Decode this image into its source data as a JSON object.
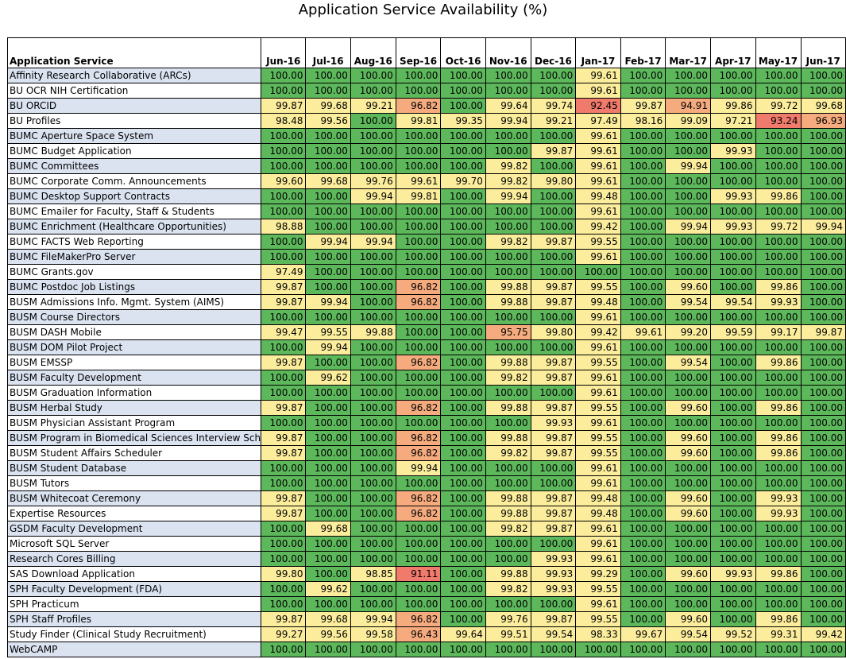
{
  "title": "Application Service Availability (%)",
  "colors": {
    "green": "#5db85c",
    "yellow": "#fbed9c",
    "orange": "#f5ab7e",
    "red": "#f07a6c",
    "name_blue": "#dbe3f1",
    "name_white": "#ffffff"
  },
  "chart_data": {
    "type": "table",
    "title": "Application Service Availability (%)",
    "row_header": "Application Service",
    "columns": [
      "Jun-16",
      "Jul-16",
      "Aug-16",
      "Sep-16",
      "Oct-16",
      "Nov-16",
      "Dec-16",
      "Jan-17",
      "Feb-17",
      "Mar-17",
      "Apr-17",
      "May-17",
      "Jun-17"
    ],
    "rows": [
      {
        "name": "Affinity Research Collaborative (ARCs)",
        "values": [
          "100.00",
          "100.00",
          "100.00",
          "100.00",
          "100.00",
          "100.00",
          "100.00",
          "99.61",
          "100.00",
          "100.00",
          "100.00",
          "100.00",
          "100.00"
        ]
      },
      {
        "name": "BU OCR NIH Certification",
        "values": [
          "100.00",
          "100.00",
          "100.00",
          "100.00",
          "100.00",
          "100.00",
          "100.00",
          "99.61",
          "100.00",
          "100.00",
          "100.00",
          "100.00",
          "100.00"
        ]
      },
      {
        "name": "BU ORCID",
        "values": [
          "99.87",
          "99.68",
          "99.21",
          "96.82",
          "100.00",
          "99.64",
          "99.74",
          "92.45",
          "99.87",
          "94.91",
          "99.86",
          "99.72",
          "99.68"
        ]
      },
      {
        "name": "BU Profiles",
        "values": [
          "98.48",
          "99.56",
          "100.00",
          "99.81",
          "99.35",
          "99.94",
          "99.21",
          "97.49",
          "98.16",
          "99.09",
          "97.21",
          "93.24",
          "96.93"
        ]
      },
      {
        "name": "BUMC Aperture Space System",
        "values": [
          "100.00",
          "100.00",
          "100.00",
          "100.00",
          "100.00",
          "100.00",
          "100.00",
          "99.61",
          "100.00",
          "100.00",
          "100.00",
          "100.00",
          "100.00"
        ]
      },
      {
        "name": "BUMC Budget Application",
        "values": [
          "100.00",
          "100.00",
          "100.00",
          "100.00",
          "100.00",
          "100.00",
          "99.87",
          "99.61",
          "100.00",
          "100.00",
          "99.93",
          "100.00",
          "100.00"
        ]
      },
      {
        "name": "BUMC Committees",
        "values": [
          "100.00",
          "100.00",
          "100.00",
          "100.00",
          "100.00",
          "99.82",
          "100.00",
          "99.61",
          "100.00",
          "99.94",
          "100.00",
          "100.00",
          "100.00"
        ]
      },
      {
        "name": "BUMC Corporate Comm. Announcements",
        "values": [
          "99.60",
          "99.68",
          "99.76",
          "99.61",
          "99.70",
          "99.82",
          "99.80",
          "99.61",
          "100.00",
          "100.00",
          "100.00",
          "100.00",
          "100.00"
        ]
      },
      {
        "name": "BUMC Desktop Support Contracts",
        "values": [
          "100.00",
          "100.00",
          "99.94",
          "99.81",
          "100.00",
          "99.94",
          "100.00",
          "99.48",
          "100.00",
          "100.00",
          "99.93",
          "99.86",
          "100.00"
        ]
      },
      {
        "name": "BUMC Emailer for Faculty, Staff & Students",
        "values": [
          "100.00",
          "100.00",
          "100.00",
          "100.00",
          "100.00",
          "100.00",
          "100.00",
          "99.61",
          "100.00",
          "100.00",
          "100.00",
          "100.00",
          "100.00"
        ]
      },
      {
        "name": "BUMC Enrichment (Healthcare Opportunities)",
        "values": [
          "98.88",
          "100.00",
          "100.00",
          "100.00",
          "100.00",
          "100.00",
          "100.00",
          "99.42",
          "100.00",
          "99.94",
          "99.93",
          "99.72",
          "99.94"
        ]
      },
      {
        "name": "BUMC FACTS Web Reporting",
        "values": [
          "100.00",
          "99.94",
          "99.94",
          "100.00",
          "100.00",
          "99.82",
          "99.87",
          "99.55",
          "100.00",
          "100.00",
          "100.00",
          "100.00",
          "100.00"
        ]
      },
      {
        "name": "BUMC FileMakerPro Server",
        "values": [
          "100.00",
          "100.00",
          "100.00",
          "100.00",
          "100.00",
          "100.00",
          "100.00",
          "99.61",
          "100.00",
          "100.00",
          "100.00",
          "100.00",
          "100.00"
        ]
      },
      {
        "name": "BUMC Grants.gov",
        "values": [
          "97.49",
          "100.00",
          "100.00",
          "100.00",
          "100.00",
          "100.00",
          "100.00",
          "100.00",
          "100.00",
          "100.00",
          "100.00",
          "100.00",
          "100.00"
        ]
      },
      {
        "name": "BUMC Postdoc Job Listings",
        "values": [
          "99.87",
          "100.00",
          "100.00",
          "96.82",
          "100.00",
          "99.88",
          "99.87",
          "99.55",
          "100.00",
          "99.60",
          "100.00",
          "99.86",
          "100.00"
        ]
      },
      {
        "name": "BUSM Admissions Info. Mgmt. System (AIMS)",
        "values": [
          "99.87",
          "99.94",
          "100.00",
          "96.82",
          "100.00",
          "99.88",
          "99.87",
          "99.48",
          "100.00",
          "99.54",
          "99.54",
          "99.93",
          "100.00"
        ]
      },
      {
        "name": "BUSM Course Directors",
        "values": [
          "100.00",
          "100.00",
          "100.00",
          "100.00",
          "100.00",
          "100.00",
          "100.00",
          "99.61",
          "100.00",
          "100.00",
          "100.00",
          "100.00",
          "100.00"
        ]
      },
      {
        "name": "BUSM DASH Mobile",
        "values": [
          "99.47",
          "99.55",
          "99.88",
          "100.00",
          "100.00",
          "95.75",
          "99.80",
          "99.42",
          "99.61",
          "99.20",
          "99.59",
          "99.17",
          "99.87"
        ]
      },
      {
        "name": "BUSM DOM Pilot Project",
        "values": [
          "100.00",
          "99.94",
          "100.00",
          "100.00",
          "100.00",
          "100.00",
          "100.00",
          "99.61",
          "100.00",
          "100.00",
          "100.00",
          "100.00",
          "100.00"
        ]
      },
      {
        "name": "BUSM EMSSP",
        "values": [
          "99.87",
          "100.00",
          "100.00",
          "96.82",
          "100.00",
          "99.88",
          "99.87",
          "99.55",
          "100.00",
          "99.54",
          "100.00",
          "99.86",
          "100.00"
        ]
      },
      {
        "name": "BUSM Faculty Development",
        "values": [
          "100.00",
          "99.62",
          "100.00",
          "100.00",
          "100.00",
          "99.82",
          "99.87",
          "99.61",
          "100.00",
          "100.00",
          "100.00",
          "100.00",
          "100.00"
        ]
      },
      {
        "name": "BUSM Graduation Information",
        "values": [
          "100.00",
          "100.00",
          "100.00",
          "100.00",
          "100.00",
          "100.00",
          "100.00",
          "99.61",
          "100.00",
          "100.00",
          "100.00",
          "100.00",
          "100.00"
        ]
      },
      {
        "name": "BUSM Herbal Study",
        "values": [
          "99.87",
          "100.00",
          "100.00",
          "96.82",
          "100.00",
          "99.88",
          "99.87",
          "99.55",
          "100.00",
          "99.60",
          "100.00",
          "99.86",
          "100.00"
        ]
      },
      {
        "name": "BUSM Physician Assistant Program",
        "values": [
          "100.00",
          "100.00",
          "100.00",
          "100.00",
          "100.00",
          "100.00",
          "99.93",
          "99.61",
          "100.00",
          "100.00",
          "100.00",
          "100.00",
          "100.00"
        ]
      },
      {
        "name": "BUSM Program in Biomedical Sciences Interview Sch",
        "values": [
          "99.87",
          "100.00",
          "100.00",
          "96.82",
          "100.00",
          "99.88",
          "99.87",
          "99.55",
          "100.00",
          "99.60",
          "100.00",
          "99.86",
          "100.00"
        ]
      },
      {
        "name": "BUSM Student Affairs Scheduler",
        "values": [
          "99.87",
          "100.00",
          "100.00",
          "96.82",
          "100.00",
          "99.82",
          "99.87",
          "99.55",
          "100.00",
          "99.60",
          "100.00",
          "99.86",
          "100.00"
        ]
      },
      {
        "name": "BUSM Student Database",
        "values": [
          "100.00",
          "100.00",
          "100.00",
          "99.94",
          "100.00",
          "100.00",
          "100.00",
          "99.61",
          "100.00",
          "100.00",
          "100.00",
          "100.00",
          "100.00"
        ]
      },
      {
        "name": "BUSM Tutors",
        "values": [
          "100.00",
          "100.00",
          "100.00",
          "100.00",
          "100.00",
          "100.00",
          "100.00",
          "99.61",
          "100.00",
          "100.00",
          "100.00",
          "100.00",
          "100.00"
        ]
      },
      {
        "name": "BUSM Whitecoat Ceremony",
        "values": [
          "99.87",
          "100.00",
          "100.00",
          "96.82",
          "100.00",
          "99.88",
          "99.87",
          "99.48",
          "100.00",
          "99.60",
          "100.00",
          "99.93",
          "100.00"
        ]
      },
      {
        "name": "Expertise Resources",
        "values": [
          "99.87",
          "100.00",
          "100.00",
          "96.82",
          "100.00",
          "99.88",
          "99.87",
          "99.48",
          "100.00",
          "99.60",
          "100.00",
          "99.93",
          "100.00"
        ]
      },
      {
        "name": "GSDM Faculty Development",
        "values": [
          "100.00",
          "99.68",
          "100.00",
          "100.00",
          "100.00",
          "99.82",
          "99.87",
          "99.61",
          "100.00",
          "100.00",
          "100.00",
          "100.00",
          "100.00"
        ]
      },
      {
        "name": "Microsoft SQL Server",
        "values": [
          "100.00",
          "100.00",
          "100.00",
          "100.00",
          "100.00",
          "100.00",
          "100.00",
          "99.61",
          "100.00",
          "100.00",
          "100.00",
          "100.00",
          "100.00"
        ]
      },
      {
        "name": "Research Cores Billing",
        "values": [
          "100.00",
          "100.00",
          "100.00",
          "100.00",
          "100.00",
          "100.00",
          "99.93",
          "99.61",
          "100.00",
          "100.00",
          "100.00",
          "100.00",
          "100.00"
        ]
      },
      {
        "name": "SAS Download Application",
        "values": [
          "99.80",
          "100.00",
          "98.85",
          "91.11",
          "100.00",
          "99.88",
          "99.93",
          "99.29",
          "100.00",
          "99.60",
          "99.93",
          "99.86",
          "100.00"
        ]
      },
      {
        "name": "SPH Faculty Development (FDA)",
        "values": [
          "100.00",
          "99.62",
          "100.00",
          "100.00",
          "100.00",
          "99.82",
          "99.93",
          "99.55",
          "100.00",
          "100.00",
          "100.00",
          "100.00",
          "100.00"
        ]
      },
      {
        "name": "SPH Practicum",
        "values": [
          "100.00",
          "100.00",
          "100.00",
          "100.00",
          "100.00",
          "100.00",
          "100.00",
          "99.61",
          "100.00",
          "100.00",
          "100.00",
          "100.00",
          "100.00"
        ]
      },
      {
        "name": "SPH Staff Profiles",
        "values": [
          "99.87",
          "99.68",
          "99.94",
          "96.82",
          "100.00",
          "99.76",
          "99.87",
          "99.55",
          "100.00",
          "99.60",
          "100.00",
          "99.86",
          "100.00"
        ]
      },
      {
        "name": "Study Finder (Clinical Study Recruitment)",
        "values": [
          "99.27",
          "99.56",
          "99.58",
          "96.43",
          "99.64",
          "99.51",
          "99.54",
          "98.33",
          "99.67",
          "99.54",
          "99.52",
          "99.31",
          "99.42"
        ]
      },
      {
        "name": "WebCAMP",
        "values": [
          "100.00",
          "100.00",
          "100.00",
          "100.00",
          "100.00",
          "100.00",
          "100.00",
          "100.00",
          "100.00",
          "100.00",
          "100.00",
          "100.00",
          "100.00"
        ]
      }
    ]
  }
}
